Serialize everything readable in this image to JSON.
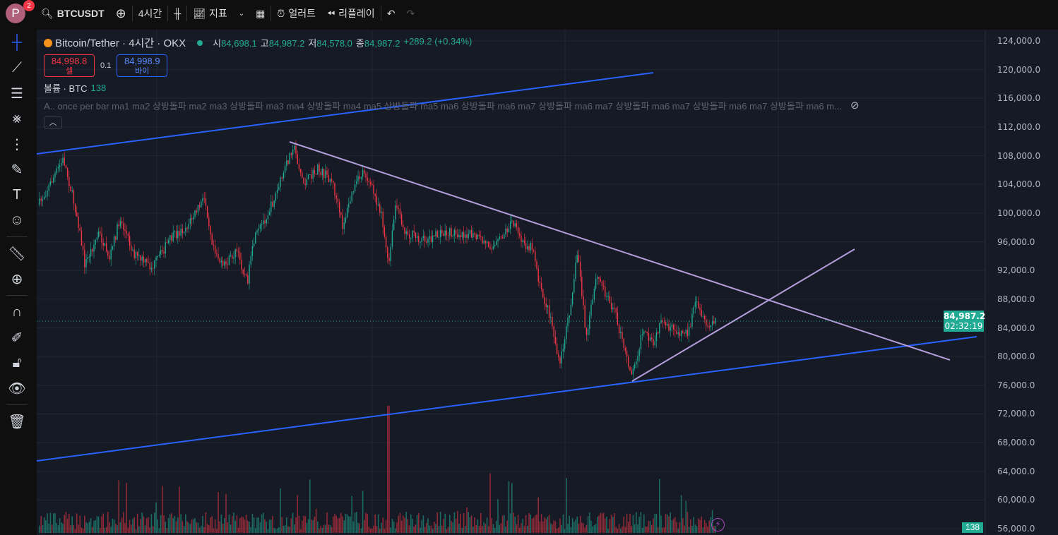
{
  "topbar": {
    "avatar": "P",
    "notifications": "2",
    "symbol": "BTCUSDT",
    "interval": "4시간",
    "indicators": "지표",
    "alert": "얼러트",
    "replay": "리플레이"
  },
  "legend": {
    "title": "Bitcoin/Tether · 4시간 · OKX",
    "o_label": "시",
    "o": "84,698.1",
    "h_label": "고",
    "h": "84,987.2",
    "l_label": "저",
    "l": "84,578.0",
    "c_label": "종",
    "c": "84,987.2",
    "change": "+289.2 (+0.34%)",
    "sell_price": "84,998.8",
    "sell_label": "셀",
    "spread": "0.1",
    "buy_price": "84,998.9",
    "buy_label": "바이",
    "volume_label": "볼륨 · BTC",
    "volume_value": "138",
    "script_text": "A.. once per bar ma1 ma2 상방돌파 ma2 ma3 상방돌파 ma3 ma4 상방돌파 ma4 ma5 상방돌파 ma5 ma6 상방돌파 ma6 ma7 상방돌파 ma6 ma7 상방돌파 ma6 ma7 상방돌파 ma6 ma7 상방돌파 ma6 m..."
  },
  "price_axis": {
    "labels": [
      "124,000.0",
      "120,000.0",
      "116,000.0",
      "112,000.0",
      "108,000.0",
      "104,000.0",
      "100,000.0",
      "96,000.0",
      "92,000.0",
      "88,000.0",
      "84,000.0",
      "80,000.0",
      "76,000.0",
      "72,000.0",
      "68,000.0",
      "64,000.0",
      "60,000.0",
      "56,000.0"
    ],
    "current_price": "84,987.2",
    "countdown": "02:32:19",
    "volume_tag": "138"
  },
  "colors": {
    "up": "#22ab94",
    "down": "#f23645",
    "trend_blue": "#2962ff",
    "trend_purple": "#b39ddb",
    "bg": "#161a25"
  },
  "tools": [
    "crosshair-icon",
    "trendline-icon",
    "fib-icon",
    "pattern-icon",
    "forecast-icon",
    "brush-icon",
    "text-icon",
    "emoji-icon",
    "ruler-icon",
    "zoom-in-icon",
    "magnet-icon",
    "lock-drawing-icon",
    "lock-icon",
    "eye-icon",
    "trash-icon"
  ]
}
